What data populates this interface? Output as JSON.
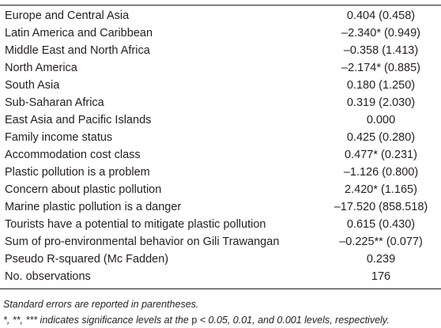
{
  "table": {
    "rows": [
      {
        "label": "Europe and Central Asia",
        "value": "0.404 (0.458)"
      },
      {
        "label": "Latin America and Caribbean",
        "value": "–2.340* (0.949)"
      },
      {
        "label": "Middle East and North Africa",
        "value": "–0.358 (1.413)"
      },
      {
        "label": "North America",
        "value": "–2.174* (0.885)"
      },
      {
        "label": "South Asia",
        "value": "0.180 (1.250)"
      },
      {
        "label": "Sub-Saharan Africa",
        "value": "0.319 (2.030)"
      },
      {
        "label": "East Asia and Pacific Islands",
        "value": "0.000"
      },
      {
        "label": "Family income status",
        "value": "0.425 (0.280)"
      },
      {
        "label": "Accommodation cost class",
        "value": "0.477* (0.231)"
      },
      {
        "label": "Plastic pollution is a problem",
        "value": "–1.126 (0.800)"
      },
      {
        "label": "Concern about plastic pollution",
        "value": "2.420* (1.165)"
      },
      {
        "label": "Marine plastic pollution is a danger",
        "value": "–17.520 (858.518)"
      },
      {
        "label": "Tourists have a potential to mitigate plastic pollution",
        "value": "0.615 (0.430)"
      },
      {
        "label": "Sum of pro-environmental behavior on Gili Trawangan",
        "value": "–0.225** (0.077)"
      },
      {
        "label": "Pseudo R-squared (Mc Fadden)",
        "value": "0.239"
      },
      {
        "label": "No. observations",
        "value": "176"
      }
    ]
  },
  "notes": {
    "line1": "Standard errors are reported in parentheses.",
    "line2_prefix": "*, **, *** indicates significance levels at the ",
    "line2_p": "p",
    "line2_suffix": " < 0.05, 0.01, and 0.001 levels, respectively."
  }
}
